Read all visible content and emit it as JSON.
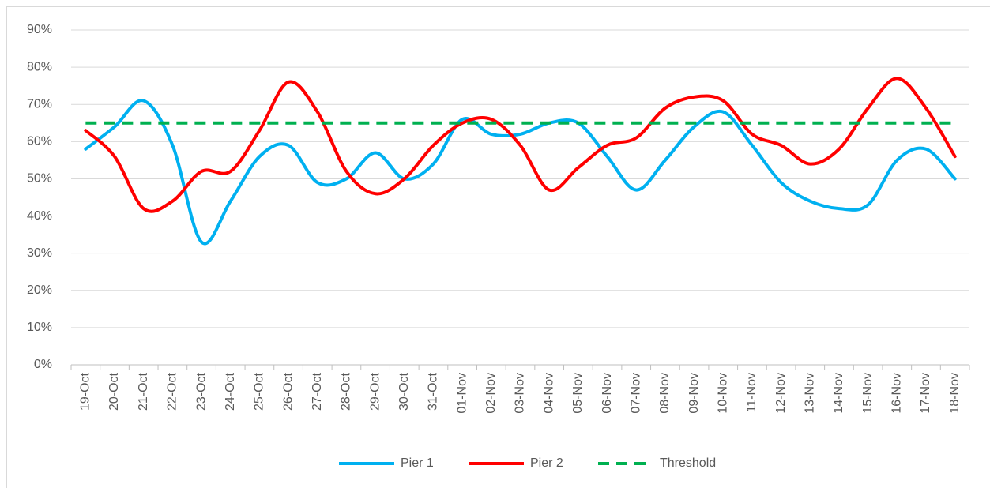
{
  "chart_data": {
    "type": "line",
    "categories": [
      "19-Oct",
      "20-Oct",
      "21-Oct",
      "22-Oct",
      "23-Oct",
      "24-Oct",
      "25-Oct",
      "26-Oct",
      "27-Oct",
      "28-Oct",
      "29-Oct",
      "30-Oct",
      "31-Oct",
      "01-Nov",
      "02-Nov",
      "03-Nov",
      "04-Nov",
      "05-Nov",
      "06-Nov",
      "07-Nov",
      "08-Nov",
      "09-Nov",
      "10-Nov",
      "11-Nov",
      "12-Nov",
      "13-Nov",
      "14-Nov",
      "15-Nov",
      "16-Nov",
      "17-Nov",
      "18-Nov"
    ],
    "series": [
      {
        "name": "Pier 1",
        "color": "#00b0f0",
        "dashed": false,
        "values": [
          58,
          64,
          71,
          59,
          33,
          44,
          56,
          59,
          49,
          50,
          57,
          50,
          54,
          66,
          62,
          62,
          65,
          65,
          56,
          47,
          55,
          64,
          68,
          59,
          49,
          44,
          42,
          43,
          55,
          58,
          50
        ]
      },
      {
        "name": "Pier 2",
        "color": "#ff0000",
        "dashed": false,
        "values": [
          63,
          56,
          42,
          44,
          52,
          52,
          63,
          76,
          68,
          52,
          46,
          50,
          59,
          65,
          66,
          59,
          47,
          53,
          59,
          61,
          69,
          72,
          71,
          62,
          59,
          54,
          58,
          69,
          77,
          69,
          56
        ]
      },
      {
        "name": "Threshold",
        "color": "#00b050",
        "dashed": true,
        "values": [
          65,
          65,
          65,
          65,
          65,
          65,
          65,
          65,
          65,
          65,
          65,
          65,
          65,
          65,
          65,
          65,
          65,
          65,
          65,
          65,
          65,
          65,
          65,
          65,
          65,
          65,
          65,
          65,
          65,
          65,
          65
        ]
      }
    ],
    "ylim": [
      0,
      90
    ],
    "yticks": [
      {
        "value": 0,
        "label": "0%"
      },
      {
        "value": 10,
        "label": "10%"
      },
      {
        "value": 20,
        "label": "20%"
      },
      {
        "value": 30,
        "label": "30%"
      },
      {
        "value": 40,
        "label": "40%"
      },
      {
        "value": 50,
        "label": "50%"
      },
      {
        "value": 60,
        "label": "60%"
      },
      {
        "value": 70,
        "label": "70%"
      },
      {
        "value": 80,
        "label": "80%"
      },
      {
        "value": 90,
        "label": "90%"
      }
    ],
    "grid": true,
    "smooth": true,
    "legend": "bottom"
  }
}
